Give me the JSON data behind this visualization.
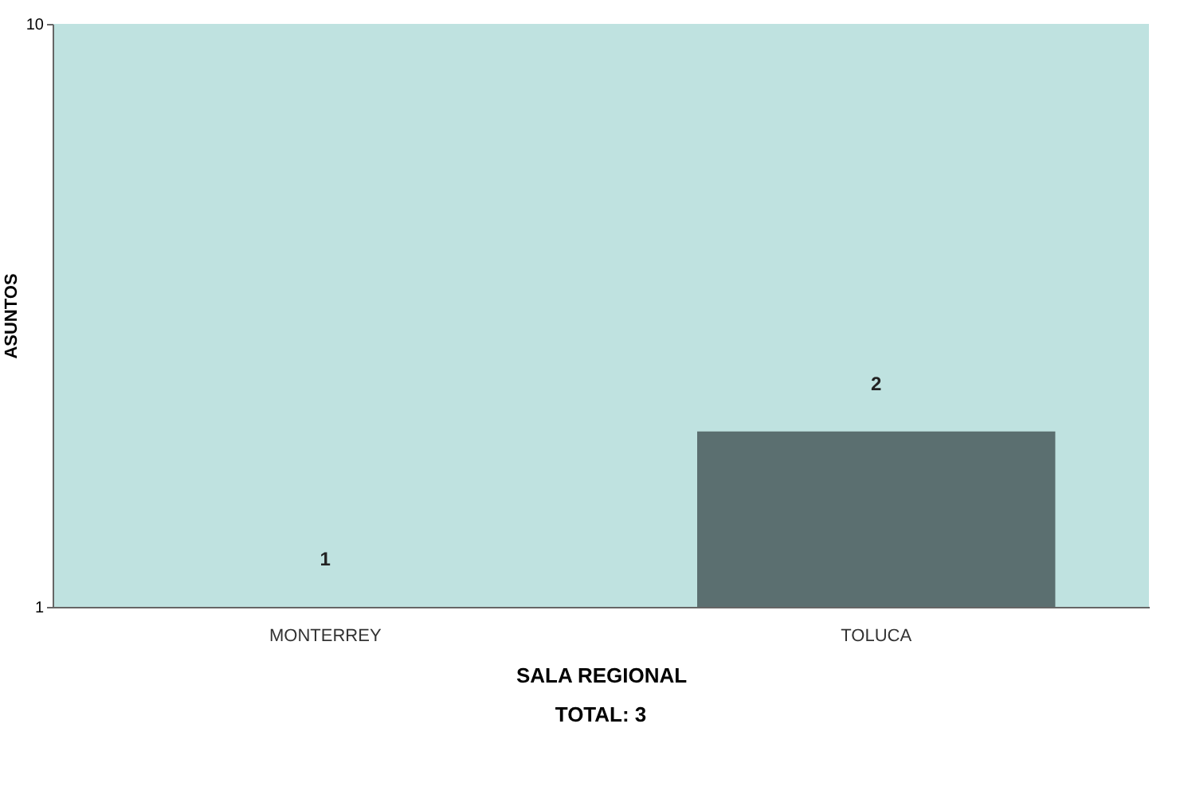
{
  "chart_data": {
    "type": "bar",
    "xlabel": "SALA REGIONAL",
    "ylabel": "ASUNTOS",
    "categories": [
      "MONTERREY",
      "TOLUCA"
    ],
    "values": [
      1,
      2
    ],
    "color": "#5b6f70",
    "log": true,
    "ylim": [
      1,
      10
    ],
    "yticks": [
      1,
      10
    ],
    "grid": false,
    "data_labels": true,
    "annotations": [
      "TOTAL:  3"
    ]
  }
}
